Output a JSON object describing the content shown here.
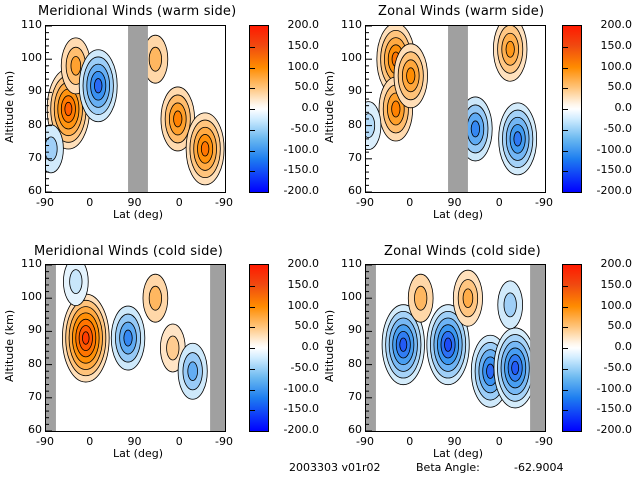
{
  "chart_data": [
    {
      "type": "heatmap",
      "subtype": "filled-contour",
      "title": "Meridional Winds (warm side)",
      "xlabel": "Lat (deg)",
      "ylabel": "Altitude (km)",
      "xticks": [
        "-90",
        "0",
        "90",
        "0",
        "-90"
      ],
      "yticks": [
        "60",
        "70",
        "80",
        "90",
        "100",
        "110"
      ],
      "ylim": [
        60,
        110
      ],
      "colorbar": {
        "range": [
          -200,
          200
        ],
        "ticks": [
          "200.0",
          "150.0",
          "100.0",
          "50.0",
          "0.0",
          "-50.0",
          "-100.0",
          "-150.0",
          "-200.0"
        ]
      },
      "no_data_bands": [
        [
          75,
          115
        ]
      ],
      "features": [
        {
          "lat_pos": -45,
          "alt": 85,
          "value": 140,
          "sign": "positive"
        },
        {
          "lat_pos": -30,
          "alt": 98,
          "value": 80,
          "sign": "positive"
        },
        {
          "lat_pos": 15,
          "alt": 92,
          "value": -130,
          "sign": "negative"
        },
        {
          "lat_pos": 130,
          "alt": 100,
          "value": 60,
          "sign": "positive"
        },
        {
          "lat_pos": 175,
          "alt": 82,
          "value": 110,
          "sign": "positive"
        },
        {
          "lat_pos": 230,
          "alt": 73,
          "value": 120,
          "sign": "positive"
        },
        {
          "lat_pos": -80,
          "alt": 73,
          "value": -50,
          "sign": "negative"
        }
      ]
    },
    {
      "type": "heatmap",
      "subtype": "filled-contour",
      "title": "Zonal Winds (warm side)",
      "xlabel": "Lat (deg)",
      "ylabel": "Altitude (km)",
      "xticks": [
        "-90",
        "0",
        "90",
        "0",
        "-90"
      ],
      "yticks": [
        "60",
        "70",
        "80",
        "90",
        "100",
        "110"
      ],
      "ylim": [
        60,
        110
      ],
      "colorbar": {
        "range": [
          -200,
          200
        ],
        "ticks": [
          "200.0",
          "150.0",
          "100.0",
          "50.0",
          "0.0",
          "-50.0",
          "-100.0",
          "-150.0",
          "-200.0"
        ]
      },
      "no_data_bands": [
        [
          75,
          115
        ]
      ],
      "features": [
        {
          "lat_pos": -30,
          "alt": 100,
          "value": 120,
          "sign": "positive"
        },
        {
          "lat_pos": -30,
          "alt": 85,
          "value": 110,
          "sign": "positive"
        },
        {
          "lat_pos": 0,
          "alt": 95,
          "value": 100,
          "sign": "positive"
        },
        {
          "lat_pos": 200,
          "alt": 103,
          "value": 90,
          "sign": "positive"
        },
        {
          "lat_pos": 130,
          "alt": 79,
          "value": -110,
          "sign": "negative"
        },
        {
          "lat_pos": 215,
          "alt": 76,
          "value": -120,
          "sign": "negative"
        },
        {
          "lat_pos": -85,
          "alt": 80,
          "value": -40,
          "sign": "negative"
        }
      ]
    },
    {
      "type": "heatmap",
      "subtype": "filled-contour",
      "title": "Meridional Winds (cold side)",
      "xlabel": "Lat (deg)",
      "ylabel": "Altitude (km)",
      "xticks": [
        "-90",
        "0",
        "90",
        "0",
        "-90"
      ],
      "yticks": [
        "60",
        "70",
        "80",
        "90",
        "100",
        "110"
      ],
      "ylim": [
        60,
        110
      ],
      "colorbar": {
        "range": [
          -200,
          200
        ],
        "ticks": [
          "200.0",
          "150.0",
          "100.0",
          "50.0",
          "0.0",
          "-50.0",
          "-100.0",
          "-150.0",
          "-200.0"
        ]
      },
      "no_data_bands": [
        [
          -90,
          -70
        ],
        [
          240,
          270
        ]
      ],
      "features": [
        {
          "lat_pos": -10,
          "alt": 88,
          "value": 170,
          "sign": "positive"
        },
        {
          "lat_pos": 75,
          "alt": 88,
          "value": -110,
          "sign": "negative"
        },
        {
          "lat_pos": 130,
          "alt": 100,
          "value": 60,
          "sign": "positive"
        },
        {
          "lat_pos": 165,
          "alt": 85,
          "value": 40,
          "sign": "positive"
        },
        {
          "lat_pos": 205,
          "alt": 78,
          "value": -80,
          "sign": "negative"
        },
        {
          "lat_pos": -30,
          "alt": 105,
          "value": -30,
          "sign": "negative"
        }
      ]
    },
    {
      "type": "heatmap",
      "subtype": "filled-contour",
      "title": "Zonal Winds (cold side)",
      "xlabel": "Lat (deg)",
      "ylabel": "Altitude (km)",
      "xticks": [
        "-90",
        "0",
        "90",
        "0",
        "-90"
      ],
      "yticks": [
        "60",
        "70",
        "80",
        "90",
        "100",
        "110"
      ],
      "ylim": [
        60,
        110
      ],
      "colorbar": {
        "range": [
          -200,
          200
        ],
        "ticks": [
          "200.0",
          "150.0",
          "100.0",
          "50.0",
          "0.0",
          "-50.0",
          "-100.0",
          "-150.0",
          "-200.0"
        ]
      },
      "no_data_bands": [
        [
          -90,
          -70
        ],
        [
          240,
          270
        ]
      ],
      "features": [
        {
          "lat_pos": -15,
          "alt": 86,
          "value": -140,
          "sign": "negative"
        },
        {
          "lat_pos": 75,
          "alt": 86,
          "value": -150,
          "sign": "negative"
        },
        {
          "lat_pos": 20,
          "alt": 100,
          "value": 60,
          "sign": "positive"
        },
        {
          "lat_pos": 115,
          "alt": 100,
          "value": 70,
          "sign": "positive"
        },
        {
          "lat_pos": 160,
          "alt": 78,
          "value": -130,
          "sign": "negative"
        },
        {
          "lat_pos": 210,
          "alt": 79,
          "value": -140,
          "sign": "negative"
        },
        {
          "lat_pos": 200,
          "alt": 98,
          "value": -50,
          "sign": "negative"
        }
      ]
    }
  ],
  "footer": {
    "id": "2003303 v01r02",
    "beta_label": "Beta Angle:",
    "beta_value": "-62.9004"
  },
  "colors": {
    "positive_max": "#ff1a00",
    "positive_mid": "#ff8c00",
    "positive_low": "#ffd7a8",
    "zero": "#ffffff",
    "negative_low": "#c8e6fa",
    "negative_mid": "#3a96f0",
    "negative_max": "#0000ff",
    "no_data": "#a0a0a0"
  }
}
